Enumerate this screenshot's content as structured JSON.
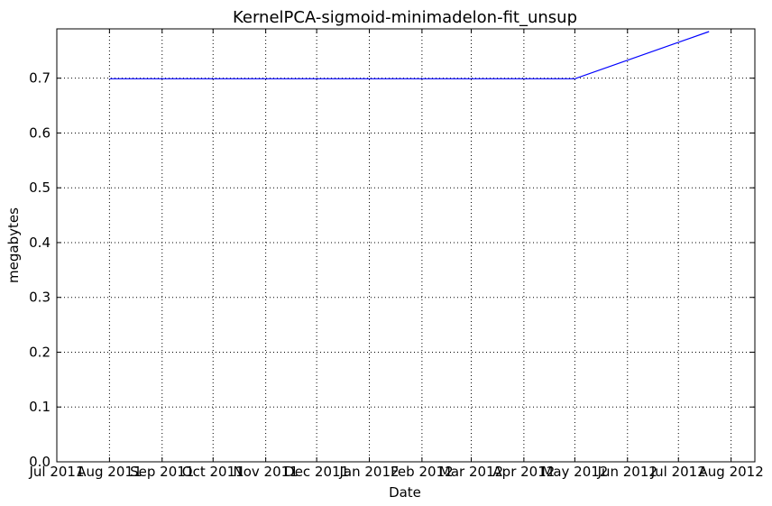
{
  "chart_data": {
    "type": "line",
    "title": "KernelPCA-sigmoid-minimadelon-fit_unsup",
    "xlabel": "Date",
    "ylabel": "megabytes",
    "grid": true,
    "x_tick_labels": [
      "Jul 2011",
      "Aug 2011",
      "Sep 2011",
      "Oct 2011",
      "Nov 2011",
      "Dec 2011",
      "Jan 2012",
      "Feb 2012",
      "Mar 2012",
      "Apr 2012",
      "May 2012",
      "Jun 2012",
      "Jul 2012",
      "Aug 2012"
    ],
    "x_range": [
      "2011-07-01",
      "2012-08-15"
    ],
    "y_ticks": [
      "0.0",
      "0.1",
      "0.2",
      "0.3",
      "0.4",
      "0.5",
      "0.6",
      "0.7"
    ],
    "ylim": [
      0,
      0.79
    ],
    "series": [
      {
        "color": "#0000ff",
        "x": [
          "2011-08-01",
          "2012-05-01",
          "2012-07-19"
        ],
        "y": [
          0.699,
          0.699,
          0.785
        ]
      }
    ]
  }
}
